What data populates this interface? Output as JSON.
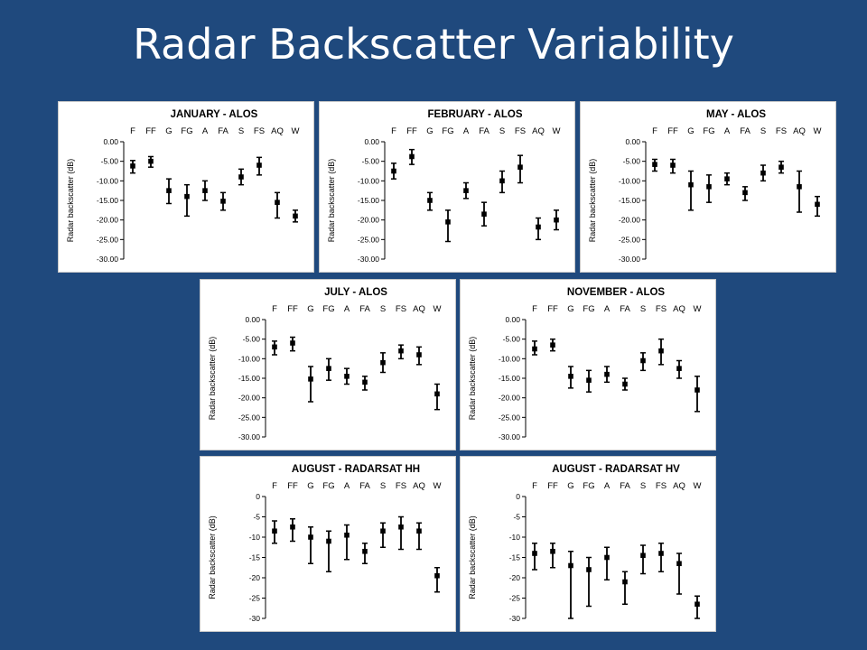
{
  "slide": {
    "title": "Radar Backscatter Variability"
  },
  "chart_data": [
    {
      "type": "scatter",
      "title": "JANUARY - ALOS",
      "ylabel": "Radar backscatter (dB)",
      "categories": [
        "F",
        "FF",
        "G",
        "FG",
        "A",
        "FA",
        "S",
        "FS",
        "AQ",
        "W"
      ],
      "yticks": [
        "0.00",
        "-5.00",
        "-10.00",
        "-15.00",
        "-20.00",
        "-25.00",
        "-30.00"
      ],
      "ylim": [
        -30,
        0
      ],
      "values": [
        -6.2,
        -5.0,
        -12.5,
        -14.0,
        -12.5,
        -15.2,
        -9.0,
        -6.0,
        -15.5,
        -19.0
      ],
      "err_low": [
        -8.0,
        -6.5,
        -15.8,
        -19.0,
        -15.0,
        -17.5,
        -11.0,
        -8.5,
        -19.5,
        -20.5
      ],
      "err_high": [
        -4.8,
        -3.8,
        -9.5,
        -11.0,
        -10.0,
        -13.0,
        -7.0,
        -4.0,
        -13.0,
        -17.5
      ]
    },
    {
      "type": "scatter",
      "title": "FEBRUARY - ALOS",
      "ylabel": "Radar backscatter (dB)",
      "categories": [
        "F",
        "FF",
        "G",
        "FG",
        "A",
        "FA",
        "S",
        "FS",
        "AQ",
        "W"
      ],
      "yticks": [
        "0.00",
        "-5.00",
        "-10.00",
        "-15.00",
        "-20.00",
        "-25.00",
        "-30.00"
      ],
      "ylim": [
        -30,
        0
      ],
      "values": [
        -7.5,
        -3.8,
        -15.0,
        -20.5,
        -12.5,
        -18.5,
        -10.0,
        -6.5,
        -21.8,
        -20.0
      ],
      "err_low": [
        -9.5,
        -5.8,
        -17.5,
        -25.5,
        -14.5,
        -21.5,
        -13.0,
        -10.5,
        -25.0,
        -22.5
      ],
      "err_high": [
        -5.5,
        -2.0,
        -13.0,
        -17.5,
        -10.5,
        -15.5,
        -7.5,
        -3.5,
        -19.5,
        -17.5
      ]
    },
    {
      "type": "scatter",
      "title": "MAY - ALOS",
      "ylabel": "Radar backscatter (dB)",
      "categories": [
        "F",
        "FF",
        "G",
        "FG",
        "A",
        "FA",
        "S",
        "FS",
        "AQ",
        "W"
      ],
      "yticks": [
        "0.00",
        "-5.00",
        "-10.00",
        "-15.00",
        "-20.00",
        "-25.00",
        "-30.00"
      ],
      "ylim": [
        -30,
        0
      ],
      "values": [
        -5.8,
        -6.0,
        -11.0,
        -11.5,
        -9.5,
        -13.0,
        -8.0,
        -6.5,
        -11.5,
        -16.0
      ],
      "err_low": [
        -7.5,
        -8.0,
        -17.5,
        -15.5,
        -11.0,
        -15.0,
        -10.0,
        -8.0,
        -18.0,
        -19.0
      ],
      "err_high": [
        -4.5,
        -4.5,
        -7.5,
        -8.5,
        -8.0,
        -11.5,
        -6.0,
        -5.0,
        -7.5,
        -14.0
      ]
    },
    {
      "type": "scatter",
      "title": "JULY - ALOS",
      "ylabel": "Radar backscatter (dB)",
      "categories": [
        "F",
        "FF",
        "G",
        "FG",
        "A",
        "FA",
        "S",
        "FS",
        "AQ",
        "W"
      ],
      "yticks": [
        "0.00",
        "-5.00",
        "-10.00",
        "-15.00",
        "-20.00",
        "-25.00",
        "-30.00"
      ],
      "ylim": [
        -30,
        0
      ],
      "values": [
        -7.0,
        -6.0,
        -15.2,
        -12.5,
        -14.5,
        -16.0,
        -11.0,
        -8.0,
        -9.0,
        -19.0
      ],
      "err_low": [
        -9.0,
        -8.0,
        -21.0,
        -15.5,
        -16.5,
        -18.0,
        -13.5,
        -10.0,
        -11.5,
        -23.0
      ],
      "err_high": [
        -5.5,
        -4.5,
        -12.0,
        -10.0,
        -12.5,
        -14.5,
        -8.5,
        -6.5,
        -7.0,
        -16.5
      ]
    },
    {
      "type": "scatter",
      "title": "NOVEMBER - ALOS",
      "ylabel": "Radar backscatter (dB)",
      "categories": [
        "F",
        "FF",
        "G",
        "FG",
        "A",
        "FA",
        "S",
        "FS",
        "AQ",
        "W"
      ],
      "yticks": [
        "0.00",
        "-5.00",
        "-10.00",
        "-15.00",
        "-20.00",
        "-25.00",
        "-30.00"
      ],
      "ylim": [
        -30,
        0
      ],
      "values": [
        -7.5,
        -6.5,
        -14.5,
        -15.5,
        -14.0,
        -16.5,
        -10.5,
        -8.0,
        -12.5,
        -18.0
      ],
      "err_low": [
        -9.0,
        -8.0,
        -17.5,
        -18.5,
        -16.0,
        -18.0,
        -13.0,
        -11.5,
        -15.0,
        -23.5
      ],
      "err_high": [
        -5.5,
        -5.0,
        -12.0,
        -13.0,
        -12.0,
        -15.0,
        -8.5,
        -5.0,
        -10.5,
        -14.5
      ]
    },
    {
      "type": "scatter",
      "title": "AUGUST - RADARSAT HH",
      "ylabel": "Radar backscatter (dB)",
      "categories": [
        "F",
        "FF",
        "G",
        "FG",
        "A",
        "FA",
        "S",
        "FS",
        "AQ",
        "W"
      ],
      "yticks": [
        "0",
        "-5",
        "-10",
        "-15",
        "-20",
        "-25",
        "-30"
      ],
      "ylim": [
        -30,
        0
      ],
      "values": [
        -8.5,
        -7.5,
        -10.0,
        -11.0,
        -9.5,
        -13.5,
        -8.5,
        -7.5,
        -8.5,
        -19.5
      ],
      "err_low": [
        -11.5,
        -11.0,
        -16.5,
        -18.5,
        -15.5,
        -16.5,
        -12.5,
        -13.0,
        -13.0,
        -23.5
      ],
      "err_high": [
        -6.0,
        -5.5,
        -7.5,
        -8.5,
        -7.0,
        -11.5,
        -6.5,
        -5.0,
        -6.5,
        -17.5
      ]
    },
    {
      "type": "scatter",
      "title": "AUGUST - RADARSAT HV",
      "ylabel": "Radar backscatter (dB)",
      "categories": [
        "F",
        "FF",
        "G",
        "FG",
        "A",
        "FA",
        "S",
        "FS",
        "AQ",
        "W"
      ],
      "yticks": [
        "0",
        "-5",
        "-10",
        "-15",
        "-20",
        "-25",
        "-30"
      ],
      "ylim": [
        -30,
        0
      ],
      "values": [
        -14.0,
        -13.5,
        -17.0,
        -18.0,
        -15.0,
        -21.0,
        -14.5,
        -14.0,
        -16.5,
        -26.5
      ],
      "err_low": [
        -18.0,
        -17.5,
        -30.0,
        -27.0,
        -20.5,
        -26.5,
        -19.0,
        -18.5,
        -24.0,
        -30.0
      ],
      "err_high": [
        -11.5,
        -11.5,
        -13.5,
        -15.0,
        -12.5,
        -18.5,
        -12.0,
        -11.5,
        -14.0,
        -24.5
      ]
    }
  ]
}
